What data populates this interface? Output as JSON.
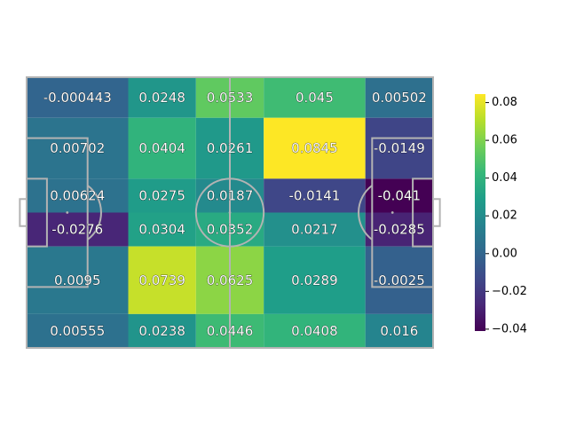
{
  "chart_data": {
    "type": "heatmap",
    "title": "",
    "xlabel": "",
    "ylabel": "",
    "x_edges": [
      0,
      30,
      50,
      70,
      100,
      120
    ],
    "y_edges": [
      0,
      12,
      30,
      40,
      50,
      70,
      80
    ],
    "rows": [
      [
        "-0.000443",
        "0.0248",
        "0.0533",
        "0.045",
        "0.00502"
      ],
      [
        "0.00702",
        "0.0404",
        "0.0261",
        "0.0845",
        "-0.0149"
      ],
      [
        "0.00624",
        "0.0275",
        "0.0187",
        "-0.0141",
        "-0.041"
      ],
      [
        "-0.0276",
        "0.0304",
        "0.0352",
        "0.0217",
        "-0.0285"
      ],
      [
        "0.0095",
        "0.0739",
        "0.0625",
        "0.0289",
        "-0.0025"
      ],
      [
        "0.00555",
        "0.0238",
        "0.0446",
        "0.0408",
        "0.016"
      ]
    ],
    "colorbar": {
      "colormap": "viridis",
      "vmin": -0.041,
      "vmax": 0.0845,
      "ticks": [
        "−0.04",
        "−0.02",
        "0.00",
        "0.02",
        "0.04",
        "0.06",
        "0.08"
      ]
    },
    "pitch": {
      "length": 120,
      "width": 80,
      "line_color": "#b3b3b3"
    }
  }
}
